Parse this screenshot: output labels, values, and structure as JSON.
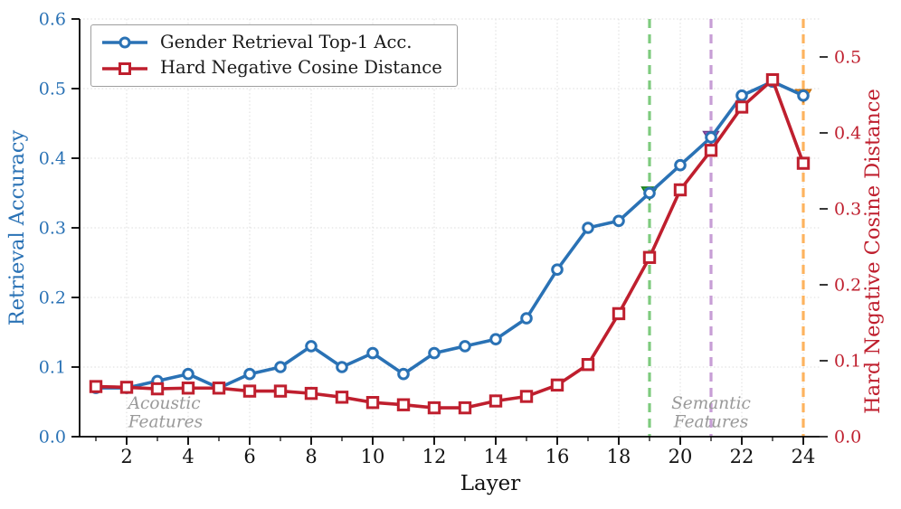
{
  "chart_data": {
    "type": "line",
    "xlabel": "Layer",
    "x": [
      1,
      2,
      3,
      4,
      5,
      6,
      7,
      8,
      9,
      10,
      11,
      12,
      13,
      14,
      15,
      16,
      17,
      18,
      19,
      20,
      21,
      22,
      23,
      24
    ],
    "x_major_ticks": [
      2,
      4,
      6,
      8,
      10,
      12,
      14,
      16,
      18,
      20,
      22,
      24
    ],
    "x_minor_ticks": [
      1,
      3,
      5,
      7,
      9,
      11,
      13,
      15,
      17,
      19,
      21,
      23
    ],
    "left_axis": {
      "label": "Retrieval Accuracy",
      "color": "#2a72b5",
      "range": [
        0.0,
        0.6
      ],
      "ticks": [
        0.0,
        0.1,
        0.2,
        0.3,
        0.4,
        0.5,
        0.6
      ],
      "tick_labels": [
        "0.0",
        "0.1",
        "0.2",
        "0.3",
        "0.4",
        "0.5",
        "0.6"
      ]
    },
    "right_axis": {
      "label": "Hard Negative Cosine Distance",
      "color": "#bf1f2e",
      "range": [
        0.0,
        0.55
      ],
      "ticks": [
        0.0,
        0.1,
        0.2,
        0.3,
        0.4,
        0.5
      ],
      "tick_labels": [
        "0.0",
        "0.1",
        "0.2",
        "0.3",
        "0.4",
        "0.5"
      ]
    },
    "series": [
      {
        "name": "Gender Retrieval Top-1 Acc.",
        "axis": "left",
        "color": "#2a72b5",
        "marker": "circle",
        "values": [
          0.07,
          0.07,
          0.08,
          0.09,
          0.07,
          0.09,
          0.1,
          0.13,
          0.1,
          0.12,
          0.09,
          0.12,
          0.13,
          0.14,
          0.17,
          0.24,
          0.3,
          0.31,
          0.35,
          0.39,
          0.43,
          0.49,
          0.51,
          0.49
        ]
      },
      {
        "name": "Hard Negative Cosine Distance",
        "axis": "right",
        "color": "#bf1f2e",
        "marker": "square",
        "values": [
          0.066,
          0.065,
          0.063,
          0.064,
          0.064,
          0.06,
          0.06,
          0.057,
          0.052,
          0.045,
          0.042,
          0.038,
          0.038,
          0.047,
          0.053,
          0.068,
          0.095,
          0.162,
          0.236,
          0.325,
          0.377,
          0.434,
          0.47,
          0.36
        ]
      }
    ],
    "vlines": [
      {
        "x": 19,
        "line_color": "#7ecb7e",
        "marker_color": "#2daa2d",
        "marker_edge": "#157815",
        "marker_value_left_axis": 0.35
      },
      {
        "x": 21,
        "line_color": "#c79ed6",
        "marker_color": "#9e56b8",
        "marker_edge": "#6d3c8a",
        "marker_value_left_axis": 0.43
      },
      {
        "x": 24,
        "line_color": "#fdb35f",
        "marker_color": "#f89117",
        "marker_edge": "#c96f08",
        "marker_value_left_axis": 0.49
      }
    ],
    "annotations": [
      {
        "lines": [
          "Acoustic",
          "Features"
        ],
        "x_layer": 2.05,
        "y_left_value": 0.04,
        "align": "start",
        "color": "#999999"
      },
      {
        "lines": [
          "Semantic",
          "Features"
        ],
        "x_layer": 21.0,
        "y_left_value": 0.04,
        "align": "middle",
        "color": "#999999"
      }
    ],
    "legend": {
      "position": "top-left",
      "entries": [
        "Gender Retrieval Top-1 Acc.",
        "Hard Negative Cosine Distance"
      ]
    },
    "grid": {
      "show": true,
      "color": "#dcdcdc",
      "style": "dotted"
    }
  }
}
